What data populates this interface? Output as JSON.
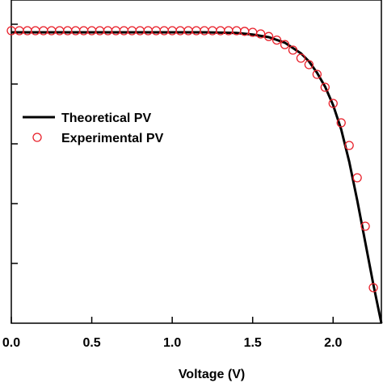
{
  "chart_data": {
    "type": "line",
    "title": "",
    "xlabel": "Voltage (V)",
    "ylabel": "",
    "xlim": [
      0.0,
      2.3
    ],
    "ylim": [
      0.0,
      1.0
    ],
    "x_ticks": [
      "0.0",
      "0.5",
      "1.0",
      "1.5",
      "2.0"
    ],
    "x_tick_values": [
      0.0,
      0.5,
      1.0,
      1.5,
      2.0
    ],
    "grid": false,
    "legend": "middle-left",
    "series": [
      {
        "name": "Theoretical PV",
        "style": "line",
        "color": "#000000",
        "x": [
          0.0,
          0.2,
          0.4,
          0.6,
          0.8,
          1.0,
          1.2,
          1.4,
          1.5,
          1.6,
          1.7,
          1.8,
          1.85,
          1.9,
          1.95,
          2.0,
          2.05,
          2.1,
          2.15,
          2.2,
          2.25,
          2.3
        ],
        "y": [
          0.9,
          0.9,
          0.9,
          0.9,
          0.9,
          0.9,
          0.9,
          0.898,
          0.893,
          0.885,
          0.868,
          0.835,
          0.81,
          0.775,
          0.732,
          0.675,
          0.6,
          0.5,
          0.38,
          0.25,
          0.12,
          0.0
        ]
      },
      {
        "name": "Experimental PV",
        "style": "markers",
        "marker": "open-circle",
        "color": "#e8202a",
        "x": [
          0.0,
          0.05,
          0.1,
          0.15,
          0.2,
          0.25,
          0.3,
          0.35,
          0.4,
          0.45,
          0.5,
          0.55,
          0.6,
          0.65,
          0.7,
          0.75,
          0.8,
          0.85,
          0.9,
          0.95,
          1.0,
          1.05,
          1.1,
          1.15,
          1.2,
          1.25,
          1.3,
          1.35,
          1.4,
          1.45,
          1.5,
          1.55,
          1.6,
          1.65,
          1.7,
          1.75,
          1.8,
          1.85,
          1.9,
          1.95,
          2.0,
          2.05,
          2.1,
          2.15,
          2.2,
          2.25
        ],
        "y": [
          0.905,
          0.905,
          0.905,
          0.905,
          0.905,
          0.905,
          0.905,
          0.905,
          0.905,
          0.905,
          0.905,
          0.905,
          0.905,
          0.905,
          0.905,
          0.905,
          0.905,
          0.905,
          0.905,
          0.905,
          0.905,
          0.905,
          0.905,
          0.905,
          0.905,
          0.905,
          0.905,
          0.905,
          0.905,
          0.903,
          0.9,
          0.895,
          0.887,
          0.876,
          0.862,
          0.845,
          0.82,
          0.8,
          0.77,
          0.73,
          0.68,
          0.62,
          0.55,
          0.45,
          0.3,
          0.11
        ]
      }
    ]
  }
}
